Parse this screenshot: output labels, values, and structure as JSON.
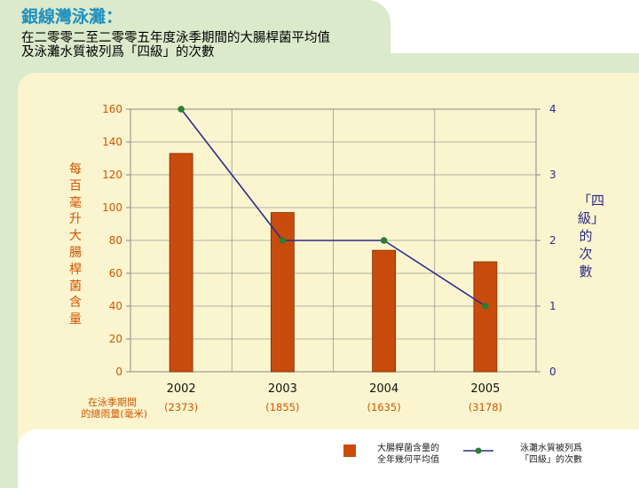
{
  "header": {
    "title": "銀線灣泳灘：",
    "subtitle_line1": "在二零零二至二零零五年度泳季期間的大腸桿菌平均值",
    "subtitle_line2": "及泳灘水質被列爲「四級」的次數"
  },
  "chart_data": {
    "type": "bar",
    "categories": [
      "2002",
      "2003",
      "2004",
      "2005"
    ],
    "category_sublabels": [
      "(2373)",
      "(1855)",
      "(1635)",
      "(3178)"
    ],
    "category_sublabel_caption_line1": "在泳季期間",
    "category_sublabel_caption_line2": "的總雨量(毫米)",
    "series": [
      {
        "name": "大腸桿菌含量的全年幾何平均值",
        "type": "bar",
        "axis": "left",
        "color": "#c94c0c",
        "values": [
          133,
          97,
          74,
          67
        ]
      },
      {
        "name": "泳灘水質被列爲「四級」的次數",
        "type": "line",
        "axis": "right",
        "color": "#2d2a8a",
        "marker_color": "#2e7d32",
        "values": [
          4,
          2,
          2,
          1
        ]
      }
    ],
    "ylabel": "每百毫升大腸桿菌含量",
    "ylabel_right": "「四級」的次數",
    "ylim": [
      0,
      160
    ],
    "ylim_right": [
      0,
      4
    ],
    "yticks": [
      0,
      20,
      40,
      60,
      80,
      100,
      120,
      140,
      160
    ],
    "yticks_right": [
      0,
      1,
      2,
      3,
      4
    ],
    "grid": true
  },
  "legend": {
    "bar_label_line1": "大腸桿菌含量的",
    "bar_label_line2": "全年幾何平均值",
    "line_label_line1": "泳灘水質被列爲",
    "line_label_line2": "「四級」的次數"
  }
}
